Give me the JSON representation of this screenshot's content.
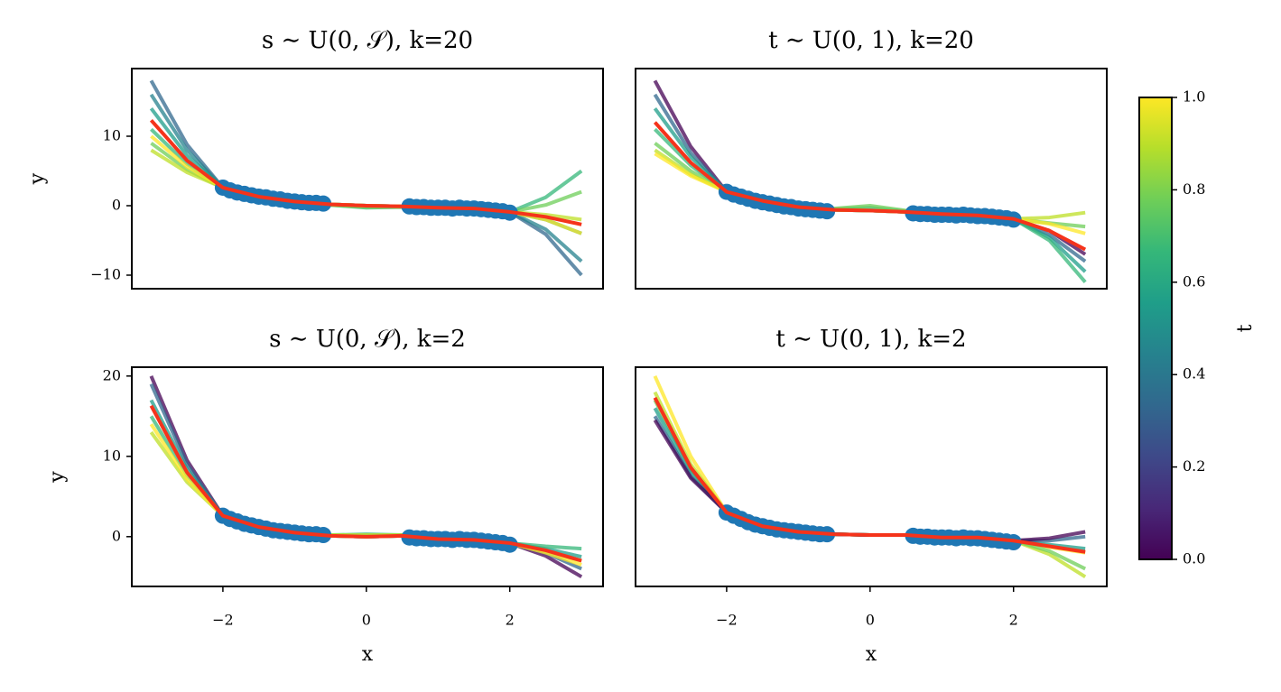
{
  "chart_data": [
    {
      "type": "line",
      "title": "s ∼ U(0, 𝒮), k=20",
      "ylabel": "y",
      "xlim": [
        -3.27,
        3.3
      ],
      "ylim": [
        -11.95,
        19.74
      ],
      "yticks": [
        {
          "value": -10,
          "label": "−10"
        },
        0,
        10
      ],
      "x": [
        -3,
        -2.5,
        -2,
        -1.5,
        -1,
        -0.5,
        0,
        0.5,
        1,
        1.5,
        2,
        2.5,
        3
      ],
      "series": [
        {
          "color": "#31688e",
          "values": [
            18,
            8.8,
            2.6,
            1.3,
            0.6,
            0.2,
            0,
            -0.1,
            -0.3,
            -0.4,
            -0.9,
            -4.1,
            -10
          ]
        },
        {
          "color": "#26828e",
          "values": [
            16,
            8.0,
            2.6,
            1.3,
            0.6,
            0.2,
            0,
            -0.1,
            -0.3,
            -0.4,
            -0.9,
            -3.4,
            -8
          ]
        },
        {
          "color": "#1f9e89",
          "values": [
            14,
            7.2,
            2.6,
            1.3,
            0.6,
            0.2,
            0,
            -0.1,
            -0.3,
            -0.4,
            -0.9,
            -2.0,
            -4
          ]
        },
        {
          "color": "#35b779",
          "values": [
            11,
            6.0,
            2.6,
            1.3,
            0.6,
            0.1,
            -0.3,
            -0.2,
            -0.3,
            -0.4,
            -0.9,
            1.2,
            5
          ]
        },
        {
          "color": "#6ece58",
          "values": [
            9,
            5.2,
            2.6,
            1.3,
            0.6,
            0.1,
            -0.2,
            -0.2,
            -0.3,
            -0.4,
            -0.9,
            0.1,
            2
          ]
        },
        {
          "color": "#bddf26",
          "values": [
            8,
            4.8,
            2.6,
            1.3,
            0.6,
            0.2,
            0,
            -0.1,
            -0.3,
            -0.4,
            -0.9,
            -1.3,
            -2
          ]
        },
        {
          "color": "#fde725",
          "values": [
            10,
            5.6,
            2.6,
            1.3,
            0.6,
            0.2,
            0,
            -0.1,
            -0.3,
            -0.4,
            -0.9,
            -2.0,
            -4
          ]
        }
      ],
      "points": {
        "color": "#1f77b4",
        "x": [
          -2,
          -1.9,
          -1.8,
          -1.7,
          -1.6,
          -1.5,
          -1.4,
          -1.3,
          -1.2,
          -1.1,
          -1,
          -0.9,
          -0.8,
          -0.7,
          -0.6,
          0.6,
          0.7,
          0.8,
          0.9,
          1,
          1.1,
          1.2,
          1.3,
          1.4,
          1.5,
          1.6,
          1.7,
          1.8,
          1.9,
          2
        ],
        "y": [
          2.6,
          2.2,
          1.9,
          1.7,
          1.5,
          1.3,
          1.2,
          1.0,
          0.9,
          0.7,
          0.6,
          0.5,
          0.4,
          0.4,
          0.3,
          -0.1,
          -0.2,
          -0.2,
          -0.3,
          -0.3,
          -0.3,
          -0.4,
          -0.3,
          -0.4,
          -0.4,
          -0.5,
          -0.6,
          -0.7,
          -0.8,
          -1.0
        ]
      },
      "mean": {
        "color": "#f5331b",
        "values": [
          12.3,
          6.5,
          2.6,
          1.3,
          0.6,
          0.2,
          0,
          -0.1,
          -0.3,
          -0.4,
          -0.9,
          -1.6,
          -2.7
        ]
      }
    },
    {
      "type": "line",
      "title": "t ∼ U(0, 1), k=20",
      "xlim": [
        -3.27,
        3.3
      ],
      "ylim": [
        -11.95,
        19.74
      ],
      "x": [
        -3,
        -2.5,
        -2,
        -1.5,
        -1,
        -0.5,
        0,
        0.5,
        1,
        1.5,
        2,
        2.5,
        3
      ],
      "series": [
        {
          "color": "#440154",
          "values": [
            18,
            8.5,
            2.0,
            0.7,
            -0.2,
            -0.6,
            -0.7,
            -0.9,
            -1.2,
            -1.4,
            -1.9,
            -3.6,
            -7
          ]
        },
        {
          "color": "#31688e",
          "values": [
            16,
            7.6,
            2.0,
            0.7,
            -0.2,
            -0.6,
            -0.7,
            -0.9,
            -1.2,
            -1.4,
            -1.9,
            -4.2,
            -8
          ]
        },
        {
          "color": "#1f9e89",
          "values": [
            14,
            7.0,
            2.0,
            0.7,
            -0.2,
            -0.6,
            -0.7,
            -0.9,
            -1.2,
            -1.4,
            -1.9,
            -4.6,
            -9.5
          ]
        },
        {
          "color": "#35b779",
          "values": [
            11,
            5.8,
            2.0,
            0.7,
            -0.2,
            -0.5,
            -0.3,
            -0.8,
            -1.2,
            -1.4,
            -1.9,
            -5.0,
            -11
          ]
        },
        {
          "color": "#6ece58",
          "values": [
            9,
            5.0,
            2.0,
            0.7,
            -0.2,
            -0.4,
            0.0,
            -0.7,
            -1.2,
            -1.4,
            -1.9,
            -2.5,
            -3
          ]
        },
        {
          "color": "#bddf26",
          "values": [
            8,
            4.5,
            2.0,
            0.7,
            -0.2,
            -0.6,
            -0.7,
            -0.9,
            -1.2,
            -1.4,
            -1.9,
            -1.7,
            -1
          ]
        },
        {
          "color": "#fde725",
          "values": [
            7.5,
            4.3,
            2.0,
            0.7,
            -0.2,
            -0.6,
            -0.7,
            -0.9,
            -1.2,
            -1.4,
            -1.9,
            -2.6,
            -4
          ]
        }
      ],
      "points": {
        "color": "#1f77b4",
        "x": [
          -2,
          -1.9,
          -1.8,
          -1.7,
          -1.6,
          -1.5,
          -1.4,
          -1.3,
          -1.2,
          -1.1,
          -1,
          -0.9,
          -0.8,
          -0.7,
          -0.6,
          0.6,
          0.7,
          0.8,
          0.9,
          1,
          1.1,
          1.2,
          1.3,
          1.4,
          1.5,
          1.6,
          1.7,
          1.8,
          1.9,
          2
        ],
        "y": [
          2.0,
          1.6,
          1.3,
          1.0,
          0.7,
          0.5,
          0.3,
          0.1,
          -0.1,
          -0.2,
          -0.4,
          -0.5,
          -0.6,
          -0.7,
          -0.8,
          -1.1,
          -1.2,
          -1.2,
          -1.3,
          -1.3,
          -1.3,
          -1.4,
          -1.3,
          -1.4,
          -1.5,
          -1.5,
          -1.6,
          -1.7,
          -1.8,
          -2.0
        ]
      },
      "mean": {
        "color": "#f5331b",
        "values": [
          12,
          6.2,
          2.0,
          0.7,
          -0.2,
          -0.6,
          -0.7,
          -0.9,
          -1.2,
          -1.4,
          -1.9,
          -3.6,
          -6.3
        ]
      }
    },
    {
      "type": "line",
      "title": "s ∼ U(0, 𝒮), k=2",
      "xlabel": "x",
      "ylabel": "y",
      "xlim": [
        -3.27,
        3.3
      ],
      "ylim": [
        -6.2,
        21.1
      ],
      "xticks": [
        {
          "value": -2,
          "label": "−2"
        },
        0,
        2
      ],
      "yticks": [
        0,
        10,
        20
      ],
      "x": [
        -3,
        -2.5,
        -2,
        -1.5,
        -1,
        -0.5,
        0,
        0.5,
        1,
        1.5,
        2,
        2.5,
        3
      ],
      "series": [
        {
          "color": "#440154",
          "values": [
            20,
            9.5,
            2.6,
            1.2,
            0.5,
            0.1,
            0,
            0.1,
            -0.3,
            -0.4,
            -0.8,
            -2.4,
            -5
          ]
        },
        {
          "color": "#31688e",
          "values": [
            19,
            9.0,
            2.6,
            1.2,
            0.5,
            0.1,
            0,
            0.1,
            -0.3,
            -0.4,
            -0.8,
            -2.0,
            -4
          ]
        },
        {
          "color": "#1f9e89",
          "values": [
            17,
            8.4,
            2.6,
            1.2,
            0.5,
            0.1,
            0,
            0.1,
            -0.3,
            -0.4,
            -0.8,
            -1.5,
            -2.5
          ]
        },
        {
          "color": "#35b779",
          "values": [
            15,
            7.6,
            2.6,
            1.2,
            0.5,
            0.2,
            0.3,
            0.2,
            -0.3,
            -0.4,
            -0.8,
            -1.2,
            -1.5
          ]
        },
        {
          "color": "#bddf26",
          "values": [
            13,
            6.8,
            2.6,
            1.2,
            0.5,
            0.2,
            0.2,
            0.2,
            -0.3,
            -0.4,
            -0.8,
            -1.8,
            -3
          ]
        },
        {
          "color": "#fde725",
          "values": [
            14,
            7.2,
            2.6,
            1.2,
            0.5,
            0.1,
            0,
            0.1,
            -0.3,
            -0.4,
            -0.8,
            -2.0,
            -3.5
          ]
        }
      ],
      "points": {
        "color": "#1f77b4",
        "x": [
          -2,
          -1.9,
          -1.8,
          -1.7,
          -1.6,
          -1.5,
          -1.4,
          -1.3,
          -1.2,
          -1.1,
          -1,
          -0.9,
          -0.8,
          -0.7,
          -0.6,
          0.6,
          0.7,
          0.8,
          0.9,
          1,
          1.1,
          1.2,
          1.3,
          1.4,
          1.5,
          1.6,
          1.7,
          1.8,
          1.9,
          2
        ],
        "y": [
          2.6,
          2.2,
          1.9,
          1.6,
          1.4,
          1.2,
          1.0,
          0.8,
          0.7,
          0.6,
          0.5,
          0.4,
          0.3,
          0.3,
          0.2,
          -0.1,
          -0.2,
          -0.2,
          -0.3,
          -0.3,
          -0.3,
          -0.4,
          -0.3,
          -0.4,
          -0.4,
          -0.5,
          -0.6,
          -0.7,
          -0.8,
          -1.0
        ]
      },
      "mean": {
        "color": "#f5331b",
        "values": [
          16.3,
          8.0,
          2.6,
          1.2,
          0.5,
          0.1,
          0,
          0.1,
          -0.3,
          -0.4,
          -0.8,
          -1.7,
          -3.0
        ]
      }
    },
    {
      "type": "line",
      "title": "t ∼ U(0, 1), k=2",
      "xlabel": "x",
      "xlim": [
        -3.27,
        3.3
      ],
      "ylim": [
        -6.2,
        21.1
      ],
      "xticks": [
        {
          "value": -2,
          "label": "−2"
        },
        0,
        2
      ],
      "x": [
        -3,
        -2.5,
        -2,
        -1.5,
        -1,
        -0.5,
        0,
        0.5,
        1,
        1.5,
        2,
        2.5,
        3
      ],
      "series": [
        {
          "color": "#fde725",
          "values": [
            20,
            10.0,
            3.0,
            1.3,
            0.6,
            0.3,
            0.2,
            0.2,
            -0.1,
            -0.1,
            -0.5,
            -1.3,
            -2
          ]
        },
        {
          "color": "#bddf26",
          "values": [
            18,
            9.0,
            3.0,
            1.3,
            0.6,
            0.3,
            0.2,
            0.2,
            -0.1,
            -0.1,
            -0.5,
            -2.2,
            -5
          ]
        },
        {
          "color": "#6ece58",
          "values": [
            17,
            8.4,
            3.0,
            1.3,
            0.6,
            0.3,
            0.2,
            0.2,
            -0.1,
            -0.1,
            -0.5,
            -1.8,
            -4
          ]
        },
        {
          "color": "#1f9e89",
          "values": [
            16,
            8.0,
            3.0,
            1.3,
            0.6,
            0.3,
            0.2,
            0.2,
            -0.1,
            -0.1,
            -0.5,
            -1.0,
            -1.5
          ]
        },
        {
          "color": "#31688e",
          "values": [
            15,
            7.5,
            3.0,
            1.3,
            0.6,
            0.3,
            0.2,
            0.2,
            -0.1,
            -0.1,
            -0.5,
            -0.5,
            0
          ]
        },
        {
          "color": "#440154",
          "values": [
            14.5,
            7.3,
            3.0,
            1.3,
            0.6,
            0.3,
            0.2,
            0.2,
            -0.1,
            -0.1,
            -0.5,
            -0.2,
            0.6
          ]
        }
      ],
      "points": {
        "color": "#1f77b4",
        "x": [
          -2,
          -1.9,
          -1.8,
          -1.7,
          -1.6,
          -1.5,
          -1.4,
          -1.3,
          -1.2,
          -1.1,
          -1,
          -0.9,
          -0.8,
          -0.7,
          -0.6,
          0.6,
          0.7,
          0.8,
          0.9,
          1,
          1.1,
          1.2,
          1.3,
          1.4,
          1.5,
          1.6,
          1.7,
          1.8,
          1.9,
          2
        ],
        "y": [
          3.0,
          2.6,
          2.2,
          1.8,
          1.5,
          1.3,
          1.1,
          0.9,
          0.8,
          0.7,
          0.6,
          0.5,
          0.4,
          0.3,
          0.3,
          0.1,
          0.0,
          0.0,
          -0.1,
          -0.1,
          -0.1,
          -0.2,
          -0.1,
          -0.2,
          -0.2,
          -0.3,
          -0.4,
          -0.5,
          -0.6,
          -0.7
        ]
      },
      "mean": {
        "color": "#f5331b",
        "values": [
          17.3,
          8.6,
          3.0,
          1.3,
          0.6,
          0.3,
          0.2,
          0.2,
          -0.1,
          -0.1,
          -0.5,
          -1.2,
          -1.9
        ]
      }
    },
    {
      "type": "colorbar",
      "label": "t",
      "ylim": [
        0,
        1
      ],
      "yticks": [
        {
          "value": 0,
          "label": "0.0"
        },
        {
          "value": 0.2,
          "label": "0.2"
        },
        {
          "value": 0.4,
          "label": "0.4"
        },
        {
          "value": 0.6,
          "label": "0.6"
        },
        {
          "value": 0.8,
          "label": "0.8"
        },
        {
          "value": 1,
          "label": "1.0"
        }
      ],
      "colors": [
        "#440154",
        "#482878",
        "#3e4989",
        "#31688e",
        "#26828e",
        "#1f9e89",
        "#35b779",
        "#6ece58",
        "#b5de2b",
        "#fde725"
      ]
    }
  ]
}
